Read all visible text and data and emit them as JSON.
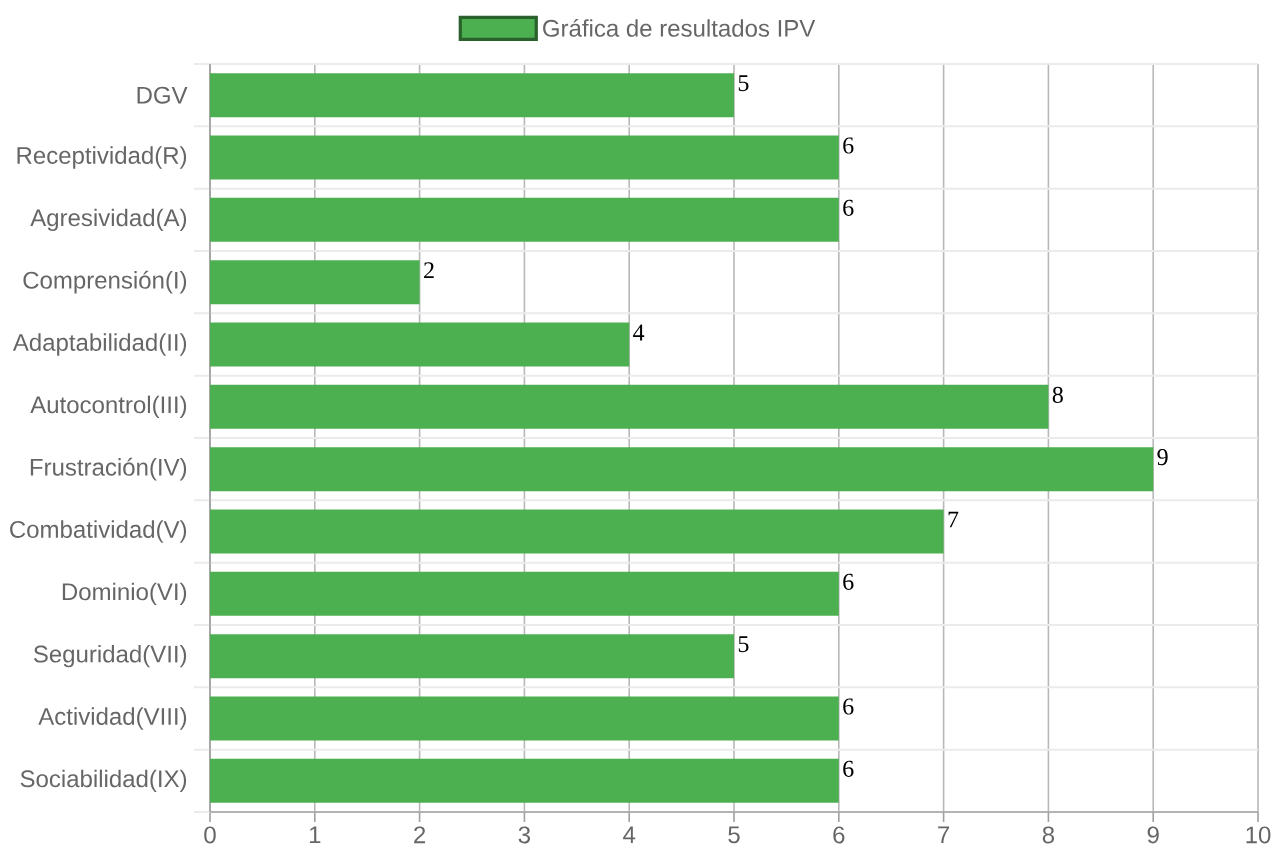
{
  "chart_data": {
    "type": "bar",
    "orientation": "horizontal",
    "categories": [
      "DGV",
      "Receptividad(R)",
      "Agresividad(A)",
      "Comprensión(I)",
      "Adaptabilidad(II)",
      "Autocontrol(III)",
      "Frustración(IV)",
      "Combatividad(V)",
      "Dominio(VI)",
      "Seguridad(VII)",
      "Actividad(VIII)",
      "Sociabilidad(IX)"
    ],
    "series": [
      {
        "name": "Gráfica de resultados IPV",
        "color": "#4caf50",
        "values": [
          5,
          6,
          6,
          2,
          4,
          8,
          9,
          7,
          6,
          5,
          6,
          6
        ]
      }
    ],
    "xlim": [
      0,
      10
    ],
    "xticks": [
      0,
      1,
      2,
      3,
      4,
      5,
      6,
      7,
      8,
      9,
      10
    ],
    "grid": true,
    "legend": "top",
    "data_labels": true
  }
}
